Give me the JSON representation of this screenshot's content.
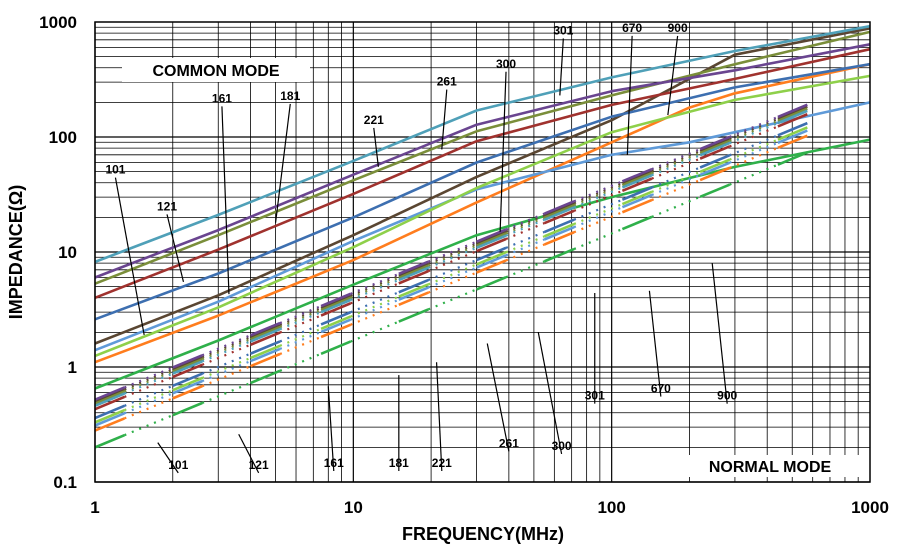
{
  "chart_data": {
    "type": "line",
    "xlabel": "FREQUENCY(MHz)",
    "ylabel": "IMPEDANCE(Ω)",
    "x_scale": "log",
    "y_scale": "log",
    "xlim": [
      1,
      1000
    ],
    "ylim": [
      0.1,
      1000
    ],
    "x_ticks": [
      "1",
      "10",
      "100",
      "1000"
    ],
    "y_ticks": [
      "1000",
      "100",
      "10",
      "1",
      "0.1"
    ],
    "grid": true,
    "mode_labels": {
      "common": "COMMON MODE",
      "normal": "NORMAL MODE"
    },
    "series_colors": {
      "101": "#5a4632",
      "121": "#ff7d1e",
      "161": "#3d6fb0",
      "181": "#a0322e",
      "221": "#7a8e3a",
      "261": "#6a4590",
      "300": "#4fa0b8",
      "301": "#5f9ad8",
      "670": "#8ed04a",
      "900": "#2fb04a"
    },
    "common_mode": [
      {
        "name": "101",
        "x": [
          1,
          3,
          10,
          30,
          100,
          300,
          1000
        ],
        "y": [
          1.6,
          4.2,
          14,
          45,
          140,
          520,
          880
        ]
      },
      {
        "name": "121",
        "x": [
          1,
          3,
          10,
          30,
          100,
          200,
          300,
          1000
        ],
        "y": [
          1.1,
          2.8,
          8.5,
          27,
          90,
          180,
          240,
          430
        ]
      },
      {
        "name": "161",
        "x": [
          1,
          3,
          10,
          30,
          100,
          300,
          1000
        ],
        "y": [
          2.6,
          6.5,
          20,
          60,
          150,
          270,
          430
        ]
      },
      {
        "name": "181",
        "x": [
          1,
          3,
          10,
          30,
          100,
          300,
          1000
        ],
        "y": [
          4,
          10.5,
          32,
          92,
          190,
          320,
          580
        ]
      },
      {
        "name": "221",
        "x": [
          1,
          3,
          10,
          30,
          100,
          300,
          1000
        ],
        "y": [
          5.3,
          14,
          42,
          112,
          230,
          430,
          820
        ]
      },
      {
        "name": "261",
        "x": [
          1,
          3,
          10,
          30,
          100,
          300,
          1000
        ],
        "y": [
          6,
          15.5,
          47,
          128,
          250,
          380,
          640
        ]
      },
      {
        "name": "300",
        "x": [
          1,
          3,
          10,
          30,
          100,
          300,
          1000
        ],
        "y": [
          8.2,
          21,
          62,
          170,
          330,
          560,
          920
        ]
      },
      {
        "name": "301",
        "x": [
          1,
          3,
          10,
          30,
          100,
          200,
          300,
          1000
        ],
        "y": [
          1.4,
          3.7,
          12.5,
          35,
          70,
          90,
          110,
          200
        ]
      },
      {
        "name": "670",
        "x": [
          1,
          3,
          10,
          30,
          100,
          300,
          1000
        ],
        "y": [
          1.25,
          3.3,
          11,
          36,
          110,
          210,
          340
        ]
      },
      {
        "name": "900",
        "x": [
          1,
          3,
          10,
          30,
          100,
          300,
          1000
        ],
        "y": [
          0.65,
          1.7,
          5.2,
          14,
          30,
          55,
          95
        ]
      }
    ],
    "normal_mode_segments": {
      "x_starts": [
        1,
        2,
        4,
        7.5,
        15,
        30,
        55,
        110,
        220,
        440
      ],
      "span_factor": 1.3,
      "slope": 0.93,
      "start_y": {
        "101": 0.5,
        "121": 0.28,
        "161": 0.36,
        "181": 0.43,
        "221": 0.48,
        "261": 0.52,
        "300": 0.46,
        "301": 0.31,
        "670": 0.33,
        "900": 0.2
      }
    },
    "annotations": [
      {
        "text": "101",
        "x": 1.2,
        "y": 48,
        "to_x": 1.55,
        "to_y": 1.9
      },
      {
        "text": "121",
        "x": 1.9,
        "y": 23,
        "to_x": 2.2,
        "to_y": 5.5
      },
      {
        "text": "161",
        "x": 3.1,
        "y": 200,
        "to_x": 3.3,
        "to_y": 4.3
      },
      {
        "text": "181",
        "x": 5.7,
        "y": 210,
        "to_x": 5.0,
        "to_y": 18
      },
      {
        "text": "221",
        "x": 12,
        "y": 130,
        "to_x": 12.5,
        "to_y": 55
      },
      {
        "text": "261",
        "x": 23,
        "y": 280,
        "to_x": 22,
        "to_y": 78
      },
      {
        "text": "300",
        "x": 39,
        "y": 400,
        "to_x": 37,
        "to_y": 15
      },
      {
        "text": "301",
        "x": 65,
        "y": 780,
        "to_x": 63,
        "to_y": 230
      },
      {
        "text": "670",
        "x": 120,
        "y": 820,
        "to_x": 115,
        "to_y": 70
      },
      {
        "text": "900",
        "x": 180,
        "y": 820,
        "to_x": 165,
        "to_y": 155
      },
      {
        "text": "101",
        "x": 2.1,
        "y": 0.13,
        "to_x": 1.75,
        "to_y": 0.22
      },
      {
        "text": "121",
        "x": 4.3,
        "y": 0.13,
        "to_x": 3.6,
        "to_y": 0.26
      },
      {
        "text": "161",
        "x": 8.4,
        "y": 0.135,
        "to_x": 8,
        "to_y": 0.68
      },
      {
        "text": "181",
        "x": 15,
        "y": 0.135,
        "to_x": 15,
        "to_y": 0.85
      },
      {
        "text": "221",
        "x": 22,
        "y": 0.135,
        "to_x": 21,
        "to_y": 1.1
      },
      {
        "text": "261",
        "x": 40,
        "y": 0.2,
        "to_x": 33,
        "to_y": 1.6
      },
      {
        "text": "300",
        "x": 64,
        "y": 0.19,
        "to_x": 52,
        "to_y": 2.0
      },
      {
        "text": "301",
        "x": 86,
        "y": 0.52,
        "to_x": 86,
        "to_y": 4.4
      },
      {
        "text": "670",
        "x": 155,
        "y": 0.6,
        "to_x": 140,
        "to_y": 4.6
      },
      {
        "text": "900",
        "x": 280,
        "y": 0.52,
        "to_x": 245,
        "to_y": 8.0
      }
    ]
  }
}
